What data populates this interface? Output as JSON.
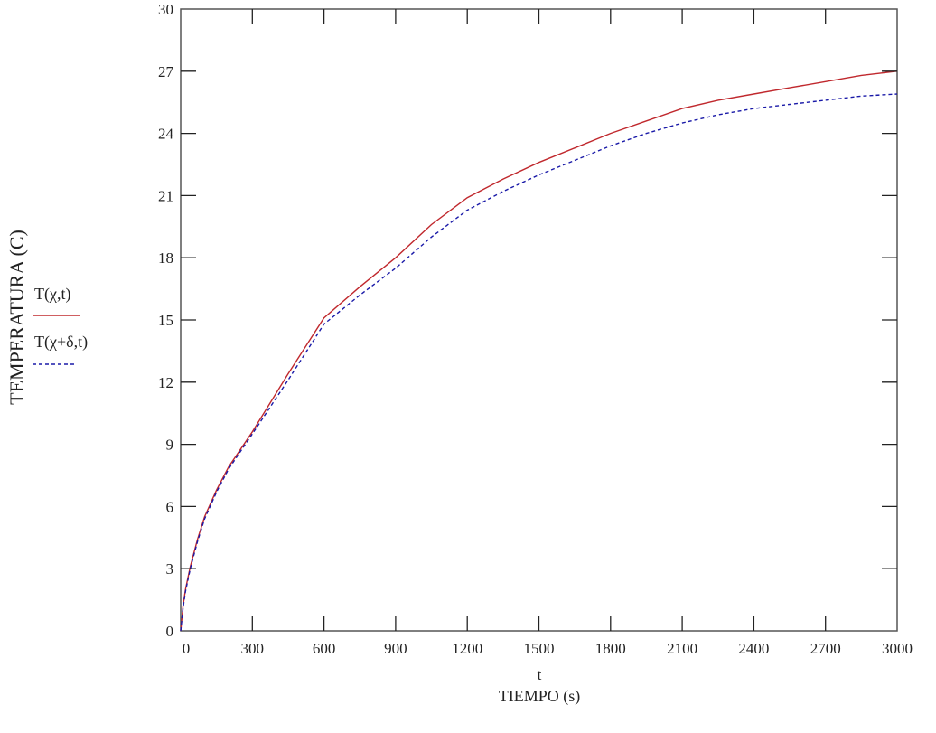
{
  "chart_data": {
    "type": "line",
    "title": "",
    "xlabel": "TIEMPO (s)",
    "xvar": "t",
    "ylabel": "TEMPERATURA (C)",
    "xlim": [
      0,
      3000
    ],
    "ylim": [
      0,
      30
    ],
    "xticks": [
      0,
      300,
      600,
      900,
      1200,
      1500,
      1800,
      2100,
      2400,
      2700,
      3000
    ],
    "yticks": [
      0,
      3,
      6,
      9,
      12,
      15,
      18,
      21,
      24,
      27,
      30
    ],
    "grid": false,
    "legend_position": "left",
    "x": [
      0,
      10,
      20,
      40,
      70,
      100,
      150,
      200,
      300,
      450,
      600,
      750,
      900,
      1050,
      1200,
      1350,
      1500,
      1650,
      1800,
      1950,
      2100,
      2250,
      2400,
      2550,
      2700,
      2850,
      3000
    ],
    "series": [
      {
        "name": "T(χ,t)",
        "color": "#c0282d",
        "style": "solid",
        "values": [
          0,
          1.2,
          2.0,
          3.1,
          4.4,
          5.5,
          6.8,
          7.9,
          9.6,
          12.4,
          15.1,
          16.6,
          18.0,
          19.6,
          20.9,
          21.8,
          22.6,
          23.3,
          24.0,
          24.6,
          25.2,
          25.6,
          25.9,
          26.2,
          26.5,
          26.8,
          27.0
        ]
      },
      {
        "name": "T(χ+δ,t)",
        "color": "#1a1aa8",
        "style": "dashed",
        "values": [
          0,
          1.1,
          1.9,
          3.0,
          4.3,
          5.4,
          6.7,
          7.8,
          9.5,
          12.1,
          14.8,
          16.2,
          17.5,
          19.0,
          20.3,
          21.2,
          22.0,
          22.7,
          23.4,
          24.0,
          24.5,
          24.9,
          25.2,
          25.4,
          25.6,
          25.8,
          25.9
        ]
      }
    ]
  },
  "legend": {
    "items": [
      {
        "label": "T(χ,t)"
      },
      {
        "label": "T(χ+δ,t)"
      }
    ]
  },
  "axes": {
    "x_title_var": "t",
    "x_title": "TIEMPO (s)",
    "y_title": "TEMPERATURA (C)"
  }
}
